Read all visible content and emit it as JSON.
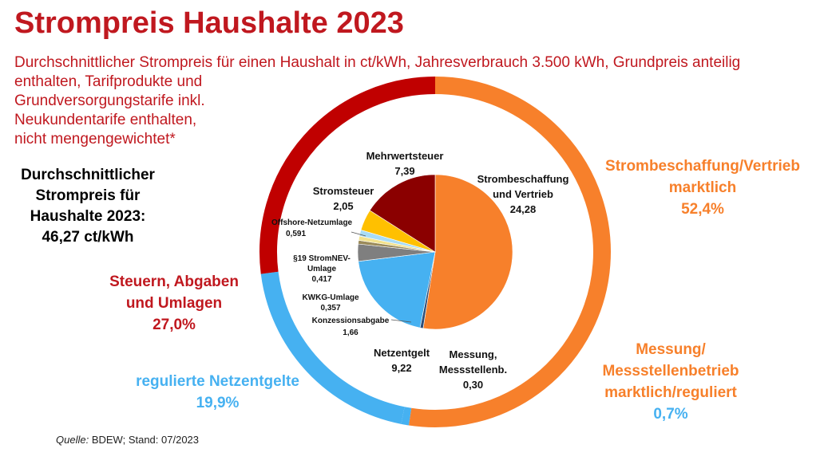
{
  "title": "Strompreis Haushalte 2023",
  "subtitle": {
    "line1": "Durchschnittlicher Strompreis für einen Haushalt in ct/kWh, Jahresverbrauch 3.500 kWh, Grundpreis anteilig",
    "line2": "enthalten, Tarifprodukte und",
    "line3": "Grundversorgungstarife inkl.",
    "line4": "Neukundentarife enthalten,",
    "line5": "nicht mengengewichtet*"
  },
  "average": {
    "line1": "Durchschnittlicher",
    "line2": "Strompreis für",
    "line3": "Haushalte 2023:",
    "line4": "46,27 ct/kWh"
  },
  "groups": {
    "beschaffung": {
      "line1": "Strombeschaffung/Vertrieb",
      "line2": "marktlich",
      "pct": "52,4%",
      "color": "#f7802b"
    },
    "steuern": {
      "line1": "Steuern, Abgaben",
      "line2": "und Umlagen",
      "pct": "27,0%",
      "color": "#c00000"
    },
    "netz": {
      "line1": "regulierte Netzentgelte",
      "pct": "19,9%",
      "color": "#46b1f1"
    },
    "messung": {
      "line1": "Messung/",
      "line2": "Messstellenbetrieb",
      "line3": "marktlich/reguliert",
      "pct": "0,7%",
      "color": "#f7802b",
      "pct_color": "#46b1f1"
    }
  },
  "source": {
    "label": "Quelle:",
    "text": "BDEW; Stand: 07/2023"
  },
  "chart_data": {
    "type": "pie",
    "unit": "ct/kWh",
    "total": 46.27,
    "inner_slices": [
      {
        "name": "Strombeschaffung und Vertrieb",
        "value": 24.28,
        "label": "24,28",
        "color": "#f7802b"
      },
      {
        "name": "Messung, Messstellenb.",
        "value": 0.3,
        "label": "0,30",
        "color": "#2e4f7a"
      },
      {
        "name": "Netzentgelt",
        "value": 9.22,
        "label": "9,22",
        "color": "#46b1f1"
      },
      {
        "name": "Konzessionsabgabe",
        "value": 1.66,
        "label": "1,66",
        "color": "#7f7f7f"
      },
      {
        "name": "KWKG-Umlage",
        "value": 0.357,
        "label": "0,357",
        "color": "#9a8a5a"
      },
      {
        "name": "§19 StromNEV-Umlage",
        "value": 0.417,
        "label": "0,417",
        "color": "#f2e28c"
      },
      {
        "name": "Offshore-Netzumlage",
        "value": 0.591,
        "label": "0,591",
        "color": "#a8dcf5"
      },
      {
        "name": "Stromsteuer",
        "value": 2.05,
        "label": "2,05",
        "color": "#ffc000"
      },
      {
        "name": "Mehrwertsteuer",
        "value": 7.39,
        "label": "7,39",
        "color": "#8b0000"
      }
    ],
    "outer_ring": [
      {
        "name": "Strombeschaffung/Vertrieb marktlich",
        "pct": 52.4,
        "color": "#f7802b"
      },
      {
        "name": "Messung/Messstellenbetrieb",
        "pct": 0.7,
        "color": "#46b1f1"
      },
      {
        "name": "regulierte Netzentgelte",
        "pct": 19.9,
        "color": "#46b1f1"
      },
      {
        "name": "Steuern, Abgaben und Umlagen",
        "pct": 27.0,
        "color": "#c00000"
      }
    ]
  }
}
